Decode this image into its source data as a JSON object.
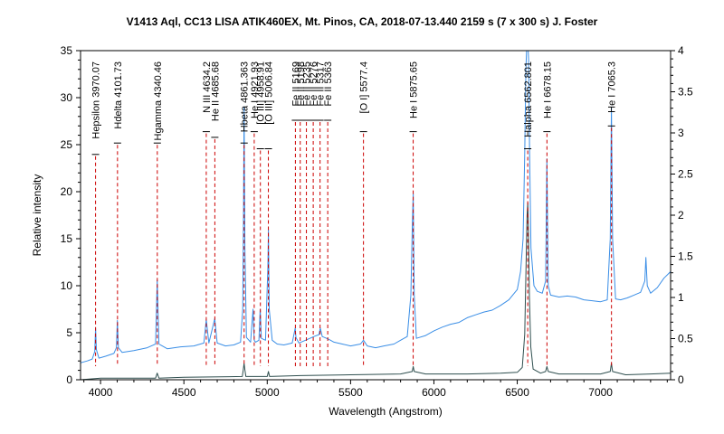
{
  "chart_data": {
    "type": "line",
    "title": "V1413 Aql, CC13 LISA ATIK460EX, Mt. Pinos, CA, 2018-07-13.440   2159 s (7 x 300 s)   J. Foster",
    "xlabel": "Wavelength (Angstrom)",
    "ylabel": "Relative intensity",
    "xlim": [
      3880,
      7420
    ],
    "ylim": [
      0,
      35
    ],
    "y2lim": [
      0,
      4
    ],
    "xticks": [
      4000,
      4500,
      5000,
      5500,
      6000,
      6500,
      7000
    ],
    "yticks": [
      0,
      5,
      10,
      15,
      20,
      25,
      30,
      35
    ],
    "y2ticks": [
      0,
      0.5,
      1,
      1.5,
      2,
      2.5,
      3,
      3.5,
      4
    ],
    "grid": false,
    "colors": {
      "blue_series": "#3a8ee6",
      "dark_series": "#2f4f4f",
      "line_markers": "#cc0000"
    },
    "series": [
      {
        "color": "#3a8ee6",
        "axis": "left",
        "x": [
          3880,
          3920,
          3950,
          3965,
          3970,
          3975,
          3990,
          4030,
          4080,
          4095,
          4101,
          4107,
          4130,
          4200,
          4280,
          4330,
          4340,
          4350,
          4400,
          4480,
          4560,
          4620,
          4634,
          4650,
          4685,
          4700,
          4750,
          4800,
          4840,
          4853,
          4858,
          4861,
          4866,
          4875,
          4900,
          4915,
          4922,
          4930,
          4950,
          4958,
          4965,
          4990,
          5004,
          5007,
          5012,
          5030,
          5060,
          5100,
          5150,
          5168,
          5172,
          5190,
          5230,
          5280,
          5310,
          5318,
          5330,
          5370,
          5400,
          5450,
          5500,
          5560,
          5577,
          5600,
          5650,
          5700,
          5760,
          5800,
          5840,
          5862,
          5870,
          5876,
          5882,
          5895,
          5950,
          6000,
          6050,
          6100,
          6150,
          6200,
          6250,
          6300,
          6350,
          6400,
          6450,
          6500,
          6520,
          6535,
          6545,
          6552,
          6558,
          6563,
          6568,
          6574,
          6582,
          6600,
          6620,
          6650,
          6670,
          6678,
          6686,
          6700,
          6750,
          6800,
          6850,
          6900,
          6950,
          7000,
          7040,
          7058,
          7065,
          7072,
          7090,
          7120,
          7160,
          7200,
          7240,
          7265,
          7272,
          7280,
          7300,
          7340,
          7380,
          7420
        ],
        "values": [
          1.8,
          2.0,
          2.2,
          3.0,
          5.5,
          3.2,
          2.3,
          2.5,
          2.8,
          3.4,
          6.3,
          3.4,
          2.9,
          3.1,
          3.4,
          3.8,
          10.6,
          3.8,
          3.3,
          3.5,
          3.6,
          3.9,
          6.4,
          3.9,
          6.5,
          3.9,
          3.6,
          3.7,
          4.0,
          7.5,
          18.0,
          29.0,
          14.0,
          4.5,
          4.0,
          7.5,
          4.2,
          4.0,
          4.2,
          7.5,
          4.4,
          4.2,
          12.0,
          16.0,
          7.5,
          4.2,
          3.8,
          3.7,
          3.9,
          5.5,
          4.5,
          3.9,
          4.2,
          4.6,
          4.8,
          5.5,
          4.6,
          4.3,
          4.0,
          3.8,
          3.6,
          3.8,
          4.2,
          3.6,
          3.4,
          3.6,
          3.8,
          4.2,
          4.6,
          9.0,
          16.0,
          19.8,
          9.0,
          4.4,
          4.7,
          5.2,
          5.6,
          5.9,
          6.1,
          6.6,
          6.9,
          7.2,
          7.4,
          7.9,
          8.5,
          9.6,
          11.5,
          15.0,
          24.0,
          33.0,
          36.0,
          36.0,
          34.0,
          24.0,
          14.0,
          10.0,
          9.4,
          9.2,
          10.5,
          23.5,
          10.0,
          9.0,
          8.8,
          8.9,
          8.8,
          8.5,
          8.4,
          8.3,
          8.5,
          15.0,
          29.0,
          15.0,
          8.6,
          8.5,
          8.7,
          9.0,
          9.3,
          10.5,
          13.0,
          10.0,
          9.2,
          9.8,
          10.8,
          11.5
        ]
      },
      {
        "color": "#2f4f4f",
        "axis": "right",
        "x": [
          3880,
          4000,
          4330,
          4340,
          4350,
          4500,
          4850,
          4856,
          4861,
          4866,
          4872,
          4900,
          5000,
          5007,
          5014,
          5200,
          5500,
          5800,
          5870,
          5876,
          5882,
          5950,
          6200,
          6400,
          6500,
          6530,
          6545,
          6553,
          6559,
          6563,
          6567,
          6573,
          6581,
          6595,
          6640,
          6670,
          6678,
          6686,
          6750,
          7000,
          7058,
          7065,
          7072,
          7150,
          7300,
          7420
        ],
        "values": [
          0.0,
          0.02,
          0.02,
          0.08,
          0.02,
          0.03,
          0.04,
          0.12,
          0.2,
          0.12,
          0.04,
          0.04,
          0.04,
          0.1,
          0.04,
          0.05,
          0.06,
          0.07,
          0.1,
          0.16,
          0.1,
          0.07,
          0.07,
          0.08,
          0.09,
          0.15,
          0.55,
          1.4,
          2.0,
          2.15,
          1.8,
          1.0,
          0.4,
          0.13,
          0.08,
          0.1,
          0.16,
          0.1,
          0.07,
          0.07,
          0.1,
          0.2,
          0.1,
          0.06,
          0.07,
          0.08
        ]
      }
    ],
    "line_markers": [
      {
        "wavelength": 3970.07,
        "label": "Hepsilon 3970.07"
      },
      {
        "wavelength": 4101.73,
        "label": "Hdelta 4101.73"
      },
      {
        "wavelength": 4340.46,
        "label": "Hgamma 4340.46"
      },
      {
        "wavelength": 4634.2,
        "label": "N III 4634.2"
      },
      {
        "wavelength": 4685.68,
        "label": "He II 4685.68"
      },
      {
        "wavelength": 4861.363,
        "label": "Hbeta 4861.363"
      },
      {
        "wavelength": 4921.93,
        "label": "He I 4921.93"
      },
      {
        "wavelength": 4958.91,
        "label": "[O III] 4958.91"
      },
      {
        "wavelength": 5006.84,
        "label": "[O III] 5006.84"
      },
      {
        "wavelength": 5169,
        "label": "Fe II 5169"
      },
      {
        "wavelength": 5198,
        "label": "Fe II 5198"
      },
      {
        "wavelength": 5235,
        "label": "Fe II 5235"
      },
      {
        "wavelength": 5276,
        "label": "Fe II 5276"
      },
      {
        "wavelength": 5317,
        "label": "Fe II 5317"
      },
      {
        "wavelength": 5363,
        "label": "Fe II 5363"
      },
      {
        "wavelength": 5577.4,
        "label": "[O I] 5577.4"
      },
      {
        "wavelength": 5875.65,
        "label": "He I 5875.65"
      },
      {
        "wavelength": 6562.801,
        "label": "Halpha 6562.801"
      },
      {
        "wavelength": 6678.15,
        "label": "He I 6678.15"
      },
      {
        "wavelength": 7065.3,
        "label": "He I 7065.3"
      }
    ]
  }
}
